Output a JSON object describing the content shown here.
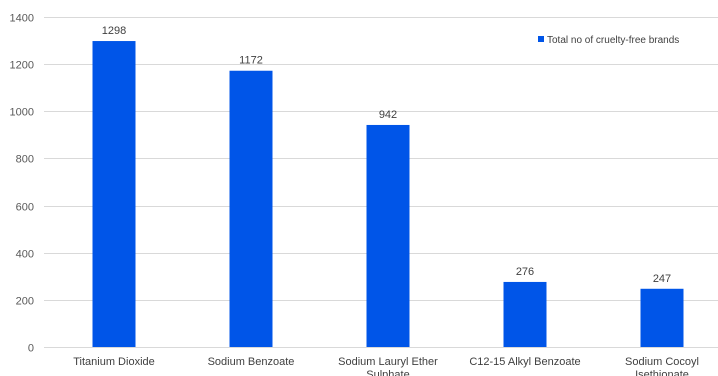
{
  "chart_data": {
    "type": "bar",
    "categories": [
      "Titanium Dioxide",
      "Sodium Benzoate",
      "Sodium Lauryl Ether Sulphate",
      "C12-15 Alkyl Benzoate",
      "Sodium Cocoyl Isethionate"
    ],
    "series": [
      {
        "name": "Total no of cruelty-free brands",
        "values": [
          1298,
          1172,
          942,
          276,
          247
        ],
        "color": "#0055e8"
      }
    ],
    "title": "",
    "xlabel": "",
    "ylabel": "",
    "ylim": [
      0,
      1400
    ],
    "yticks": [
      0,
      200,
      400,
      600,
      800,
      1000,
      1200,
      1400
    ],
    "grid": true,
    "legend_position": "top-right",
    "data_labels": true
  }
}
